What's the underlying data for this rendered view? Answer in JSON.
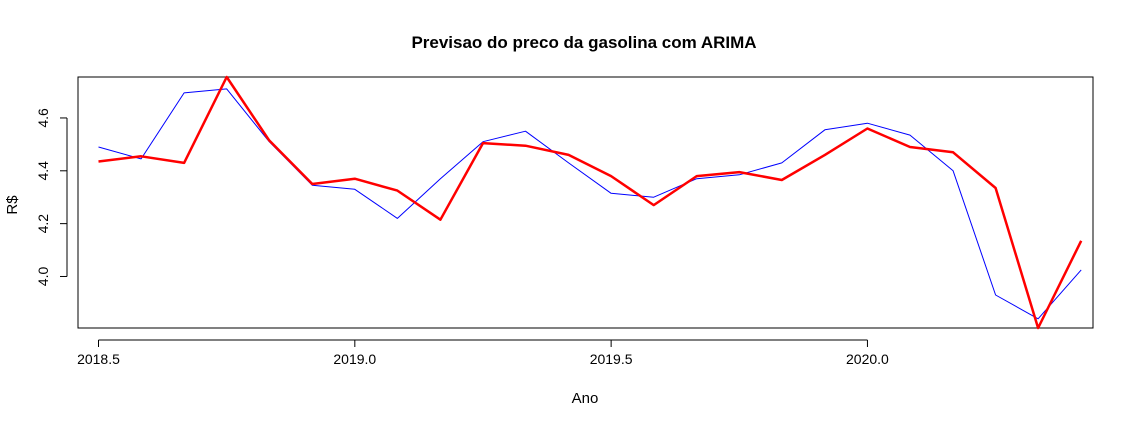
{
  "chart_data": {
    "type": "line",
    "title": "Previsao do preco da gasolina com ARIMA",
    "xlabel": "Ano",
    "ylabel": "R$",
    "xlim": [
      2018.46,
      2020.44
    ],
    "ylim": [
      3.805,
      4.755
    ],
    "x_ticks": [
      2018.5,
      2019.0,
      2019.5,
      2020.0
    ],
    "x_tick_labels": [
      "2018.5",
      "2019.0",
      "2019.5",
      "2020.0"
    ],
    "y_ticks": [
      4.0,
      4.2,
      4.4,
      4.6
    ],
    "y_tick_labels": [
      "4.0",
      "4.2",
      "4.4",
      "4.6"
    ],
    "grid": false,
    "legend": "none",
    "x": [
      2018.5,
      2018.583,
      2018.667,
      2018.75,
      2018.833,
      2018.917,
      2019.0,
      2019.083,
      2019.167,
      2019.25,
      2019.333,
      2019.417,
      2019.5,
      2019.583,
      2019.667,
      2019.75,
      2019.833,
      2019.917,
      2020.0,
      2020.083,
      2020.167,
      2020.25,
      2020.333,
      2020.417
    ],
    "series": [
      {
        "color": "#0000ff",
        "stroke_width": 1,
        "values": [
          4.49,
          4.445,
          4.695,
          4.71,
          4.51,
          4.345,
          4.33,
          4.22,
          4.37,
          4.51,
          4.55,
          4.43,
          4.315,
          4.3,
          4.37,
          4.385,
          4.43,
          4.555,
          4.58,
          4.535,
          4.4,
          3.93,
          3.84,
          4.025
        ]
      },
      {
        "color": "#ff0000",
        "stroke_width": 2.5,
        "values": [
          4.435,
          4.455,
          4.43,
          4.755,
          4.515,
          4.35,
          4.37,
          4.325,
          4.215,
          4.505,
          4.495,
          4.46,
          4.38,
          4.27,
          4.38,
          4.395,
          4.365,
          4.46,
          4.56,
          4.49,
          4.47,
          4.335,
          3.805,
          4.135
        ]
      }
    ]
  }
}
